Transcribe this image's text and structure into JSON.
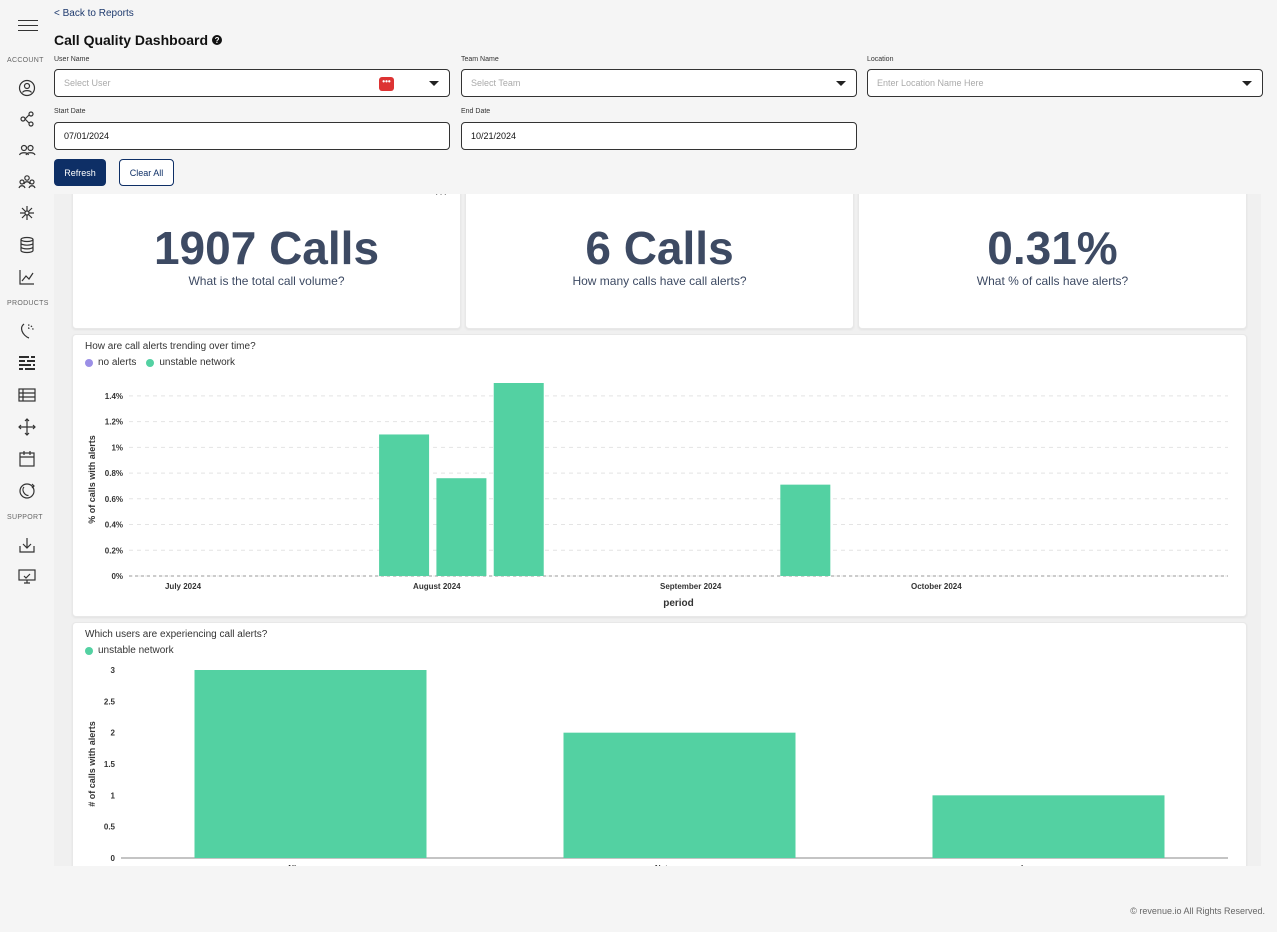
{
  "sidebar": {
    "sections": {
      "account": "ACCOUNT",
      "products": "PRODUCTS",
      "support": "SUPPORT"
    }
  },
  "header": {
    "back_link": "< Back to Reports",
    "title": "Call Quality Dashboard"
  },
  "filters": {
    "user_name": {
      "label": "User Name",
      "placeholder": "Select User"
    },
    "team_name": {
      "label": "Team Name",
      "placeholder": "Select Team"
    },
    "location": {
      "label": "Location",
      "placeholder": "Enter Location Name Here"
    },
    "start_date": {
      "label": "Start Date",
      "value": "07/01/2024"
    },
    "end_date": {
      "label": "End Date",
      "value": "10/21/2024"
    },
    "dots_badge": "•••"
  },
  "buttons": {
    "refresh": "Refresh",
    "clear_all": "Clear All"
  },
  "kpis": [
    {
      "value": "1907 Calls",
      "label": "What is the total call volume?"
    },
    {
      "value": "6 Calls",
      "label": "How many calls have call alerts?"
    },
    {
      "value": "0.31%",
      "label": "What % of calls have alerts?"
    }
  ],
  "kpi_menu": "···",
  "colors": {
    "no_alerts": "#9b8fe6",
    "unstable_network": "#53d1a2",
    "accent": "#0e2f66"
  },
  "chart_data": [
    {
      "type": "bar",
      "title": "How are call alerts trending over time?",
      "legend": [
        "no alerts",
        "unstable network"
      ],
      "xlabel": "period",
      "ylabel": "% of calls with alerts",
      "x_ticks": [
        "July 2024",
        "August 2024",
        "September 2024",
        "October 2024"
      ],
      "y_ticks": [
        "0%",
        "0.2%",
        "0.4%",
        "0.6%",
        "0.8%",
        "1%",
        "1.2%",
        "1.4%"
      ],
      "ylim": [
        0,
        1.5
      ],
      "series": [
        {
          "name": "unstable network",
          "points": [
            {
              "x": "2024-07-28",
              "y": 1.1
            },
            {
              "x": "2024-08-04",
              "y": 0.76
            },
            {
              "x": "2024-08-11",
              "y": 1.5
            },
            {
              "x": "2024-09-15",
              "y": 0.71
            }
          ]
        }
      ],
      "grid": true
    },
    {
      "type": "bar",
      "title": "Which users are experiencing call alerts?",
      "legend": [
        "unstable network"
      ],
      "xlabel": "",
      "ylabel": "# of calls with alerts",
      "categories": [
        "Nic",
        "Nate",
        "Lucas"
      ],
      "values": [
        3,
        2,
        1
      ],
      "y_ticks": [
        "0",
        "0.5",
        "1",
        "1.5",
        "2",
        "2.5",
        "3"
      ],
      "ylim": [
        0,
        3
      ],
      "grid": false
    }
  ],
  "footer": "© revenue.io All Rights Reserved."
}
